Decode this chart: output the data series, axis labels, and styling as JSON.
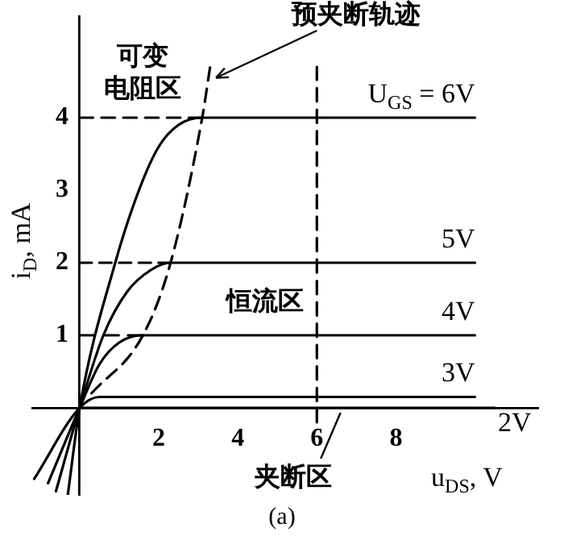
{
  "chart_data": {
    "type": "line",
    "xlabel": "u$_{DS}$, V",
    "ylabel": "i$_{D}$, mA",
    "xlim": [
      -1.2,
      11.6
    ],
    "ylim": [
      -1.2,
      5.4
    ],
    "xticks": [
      2,
      4,
      6,
      8
    ],
    "yticks": [
      1,
      2,
      3,
      4
    ],
    "grid": false,
    "legend": false,
    "marker": "none",
    "series": [
      {
        "name": "U$_{GS}$ = 6V",
        "color": "#000000",
        "x": [
          -0.3,
          0,
          0.9,
          1.5,
          2.0,
          2.5,
          3.1,
          10
        ],
        "values": [
          -1.2,
          0,
          2,
          3,
          3.6,
          3.9,
          4,
          4
        ]
      },
      {
        "name": "5V",
        "color": "#000000",
        "x": [
          -0.6,
          0,
          0.6,
          1.2,
          1.8,
          2.3,
          10
        ],
        "values": [
          -1.15,
          0,
          1,
          1.6,
          1.9,
          2,
          2
        ]
      },
      {
        "name": "4V",
        "color": "#000000",
        "x": [
          -0.8,
          0,
          0.5,
          1.0,
          1.6,
          10
        ],
        "values": [
          -1.04,
          0,
          0.6,
          0.9,
          1,
          1
        ]
      },
      {
        "name": "3V",
        "color": "#000000",
        "x": [
          -1.15,
          0,
          0.5,
          10
        ],
        "values": [
          -0.98,
          0,
          0.15,
          0.15
        ]
      },
      {
        "name": "2V",
        "color": "#000000",
        "x": [
          0,
          10.5
        ],
        "values": [
          0,
          0
        ]
      },
      {
        "color": "#000000",
        "line_style": "dashed",
        "x": [
          0.3,
          1.6,
          2.3,
          3.1,
          3.3
        ],
        "values": [
          0.2,
          1,
          2,
          4,
          4.7
        ]
      },
      {
        "color": "#000000",
        "line_style": "dashed",
        "x": [
          0,
          3.1
        ],
        "values": [
          4,
          4
        ]
      },
      {
        "color": "#000000",
        "line_style": "dashed",
        "x": [
          0,
          2.3
        ],
        "values": [
          2,
          2
        ]
      },
      {
        "color": "#000000",
        "line_style": "dashed",
        "x": [
          0,
          1.6
        ],
        "values": [
          1,
          1
        ]
      },
      {
        "color": "#000000",
        "line_style": "dashed",
        "x": [
          6,
          6
        ],
        "values": [
          -0.2,
          4.7
        ]
      }
    ],
    "annotations": [
      "可变电阻区",
      {
        "text": "预夹断轨迹",
        "x": 3.45,
        "y": 4.55
      },
      "恒流区",
      {
        "text": "夹断区",
        "x": 6.6,
        "y": 0
      },
      "(a)"
    ]
  }
}
